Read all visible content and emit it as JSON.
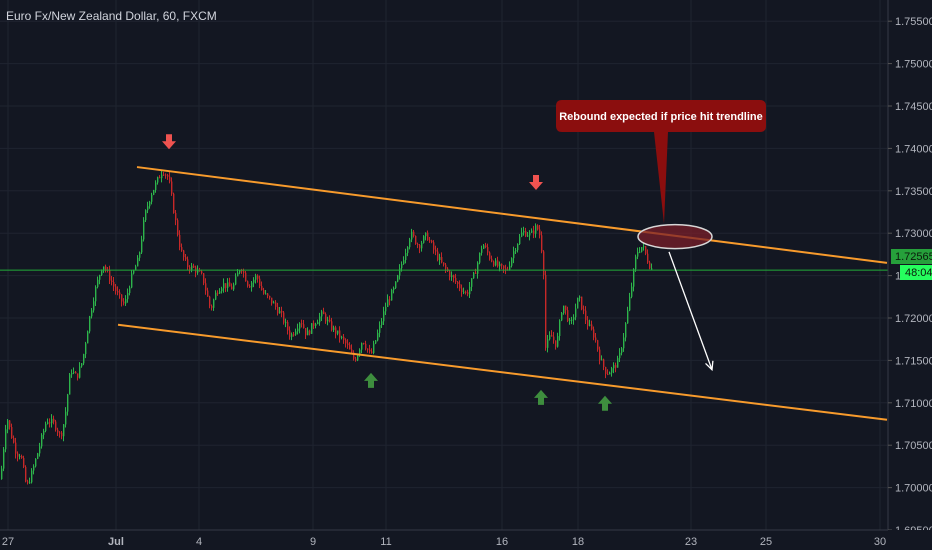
{
  "title": "Euro Fx/New Zealand Dollar, 60, FXCM",
  "chart_data": {
    "type": "candlestick",
    "symbol": "Euro Fx/New Zealand Dollar",
    "interval": "60",
    "source": "FXCM",
    "y_ticks": [
      "1.75500",
      "1.75000",
      "1.74500",
      "1.74000",
      "1.73500",
      "1.73000",
      "1.72500",
      "1.72000",
      "1.71500",
      "1.71000",
      "1.70500",
      "1.70000",
      "1.69500"
    ],
    "x_ticks": [
      "27",
      "Jul",
      "4",
      "9",
      "11",
      "16",
      "18",
      "23",
      "25",
      "30"
    ],
    "ylim": [
      1.695,
      1.7575
    ],
    "last_price": "1.72565",
    "countdown": "48:04",
    "price_path": [
      [
        0,
        1.701
      ],
      [
        6,
        1.7085
      ],
      [
        10,
        1.7065
      ],
      [
        16,
        1.704
      ],
      [
        20,
        1.704
      ],
      [
        26,
        1.7
      ],
      [
        32,
        1.702
      ],
      [
        38,
        1.7045
      ],
      [
        46,
        1.708
      ],
      [
        54,
        1.7075
      ],
      [
        60,
        1.706
      ],
      [
        64,
        1.708
      ],
      [
        70,
        1.714
      ],
      [
        76,
        1.713
      ],
      [
        82,
        1.715
      ],
      [
        88,
        1.7195
      ],
      [
        94,
        1.723
      ],
      [
        102,
        1.7265
      ],
      [
        110,
        1.7245
      ],
      [
        118,
        1.7225
      ],
      [
        124,
        1.7215
      ],
      [
        130,
        1.7245
      ],
      [
        138,
        1.727
      ],
      [
        144,
        1.732
      ],
      [
        150,
        1.7345
      ],
      [
        156,
        1.736
      ],
      [
        162,
        1.7375
      ],
      [
        168,
        1.7365
      ],
      [
        174,
        1.732
      ],
      [
        180,
        1.728
      ],
      [
        186,
        1.7262
      ],
      [
        194,
        1.7258
      ],
      [
        202,
        1.7248
      ],
      [
        210,
        1.721
      ],
      [
        216,
        1.7232
      ],
      [
        222,
        1.724
      ],
      [
        232,
        1.7235
      ],
      [
        240,
        1.7262
      ],
      [
        248,
        1.7238
      ],
      [
        256,
        1.725
      ],
      [
        262,
        1.723
      ],
      [
        272,
        1.7218
      ],
      [
        280,
        1.7205
      ],
      [
        290,
        1.7178
      ],
      [
        300,
        1.7198
      ],
      [
        306,
        1.718
      ],
      [
        314,
        1.7195
      ],
      [
        322,
        1.7205
      ],
      [
        330,
        1.719
      ],
      [
        338,
        1.718
      ],
      [
        346,
        1.7168
      ],
      [
        354,
        1.715
      ],
      [
        362,
        1.7175
      ],
      [
        370,
        1.7155
      ],
      [
        378,
        1.7185
      ],
      [
        386,
        1.7218
      ],
      [
        394,
        1.7235
      ],
      [
        402,
        1.7268
      ],
      [
        410,
        1.73
      ],
      [
        418,
        1.7285
      ],
      [
        426,
        1.7298
      ],
      [
        434,
        1.7278
      ],
      [
        442,
        1.7262
      ],
      [
        450,
        1.725
      ],
      [
        458,
        1.7238
      ],
      [
        466,
        1.7228
      ],
      [
        474,
        1.7252
      ],
      [
        482,
        1.7288
      ],
      [
        490,
        1.727
      ],
      [
        498,
        1.726
      ],
      [
        506,
        1.7255
      ],
      [
        514,
        1.7282
      ],
      [
        522,
        1.7302
      ],
      [
        530,
        1.7298
      ],
      [
        536,
        1.7308
      ],
      [
        540,
        1.7295
      ],
      [
        543,
        1.7255
      ],
      [
        545,
        1.7165
      ],
      [
        550,
        1.718
      ],
      [
        556,
        1.7168
      ],
      [
        562,
        1.7218
      ],
      [
        570,
        1.719
      ],
      [
        578,
        1.7225
      ],
      [
        586,
        1.7195
      ],
      [
        594,
        1.7178
      ],
      [
        600,
        1.715
      ],
      [
        606,
        1.7135
      ],
      [
        612,
        1.714
      ],
      [
        618,
        1.715
      ],
      [
        624,
        1.7185
      ],
      [
        630,
        1.723
      ],
      [
        636,
        1.7278
      ],
      [
        642,
        1.7285
      ],
      [
        648,
        1.7265
      ],
      [
        652,
        1.7256
      ]
    ],
    "trendlines": [
      {
        "name": "upper-channel",
        "color": "#f89b2c",
        "from": [
          137,
          1.7378
        ],
        "to": [
          887,
          1.7265
        ]
      },
      {
        "name": "lower-channel",
        "color": "#f89b2c",
        "from": [
          118,
          1.7192
        ],
        "to": [
          887,
          1.708
        ]
      }
    ],
    "horizontal_line": {
      "price": 1.72565,
      "color": "#22ab39"
    },
    "arrows_down": [
      [
        169,
        1.7406
      ],
      [
        536,
        1.7358
      ]
    ],
    "arrows_up": [
      [
        371,
        1.7127
      ],
      [
        541,
        1.7107
      ],
      [
        605,
        1.71
      ]
    ],
    "highlight_ellipse": {
      "cx": 675,
      "cy_price": 1.7296,
      "color": "#7a1f2a"
    },
    "projection_arrow": {
      "from": [
        669,
        1.7278
      ],
      "to": [
        712,
        1.7139
      ]
    },
    "callout": {
      "text": "Rebound expected if price hit trendline",
      "color": "#8b0e0e"
    },
    "colors": {
      "up": "#26a69a",
      "down": "#ef5350",
      "up_candle": "#2db44b",
      "down_candle": "#c62828",
      "grid": "#1f2430",
      "background": "#131722"
    }
  }
}
